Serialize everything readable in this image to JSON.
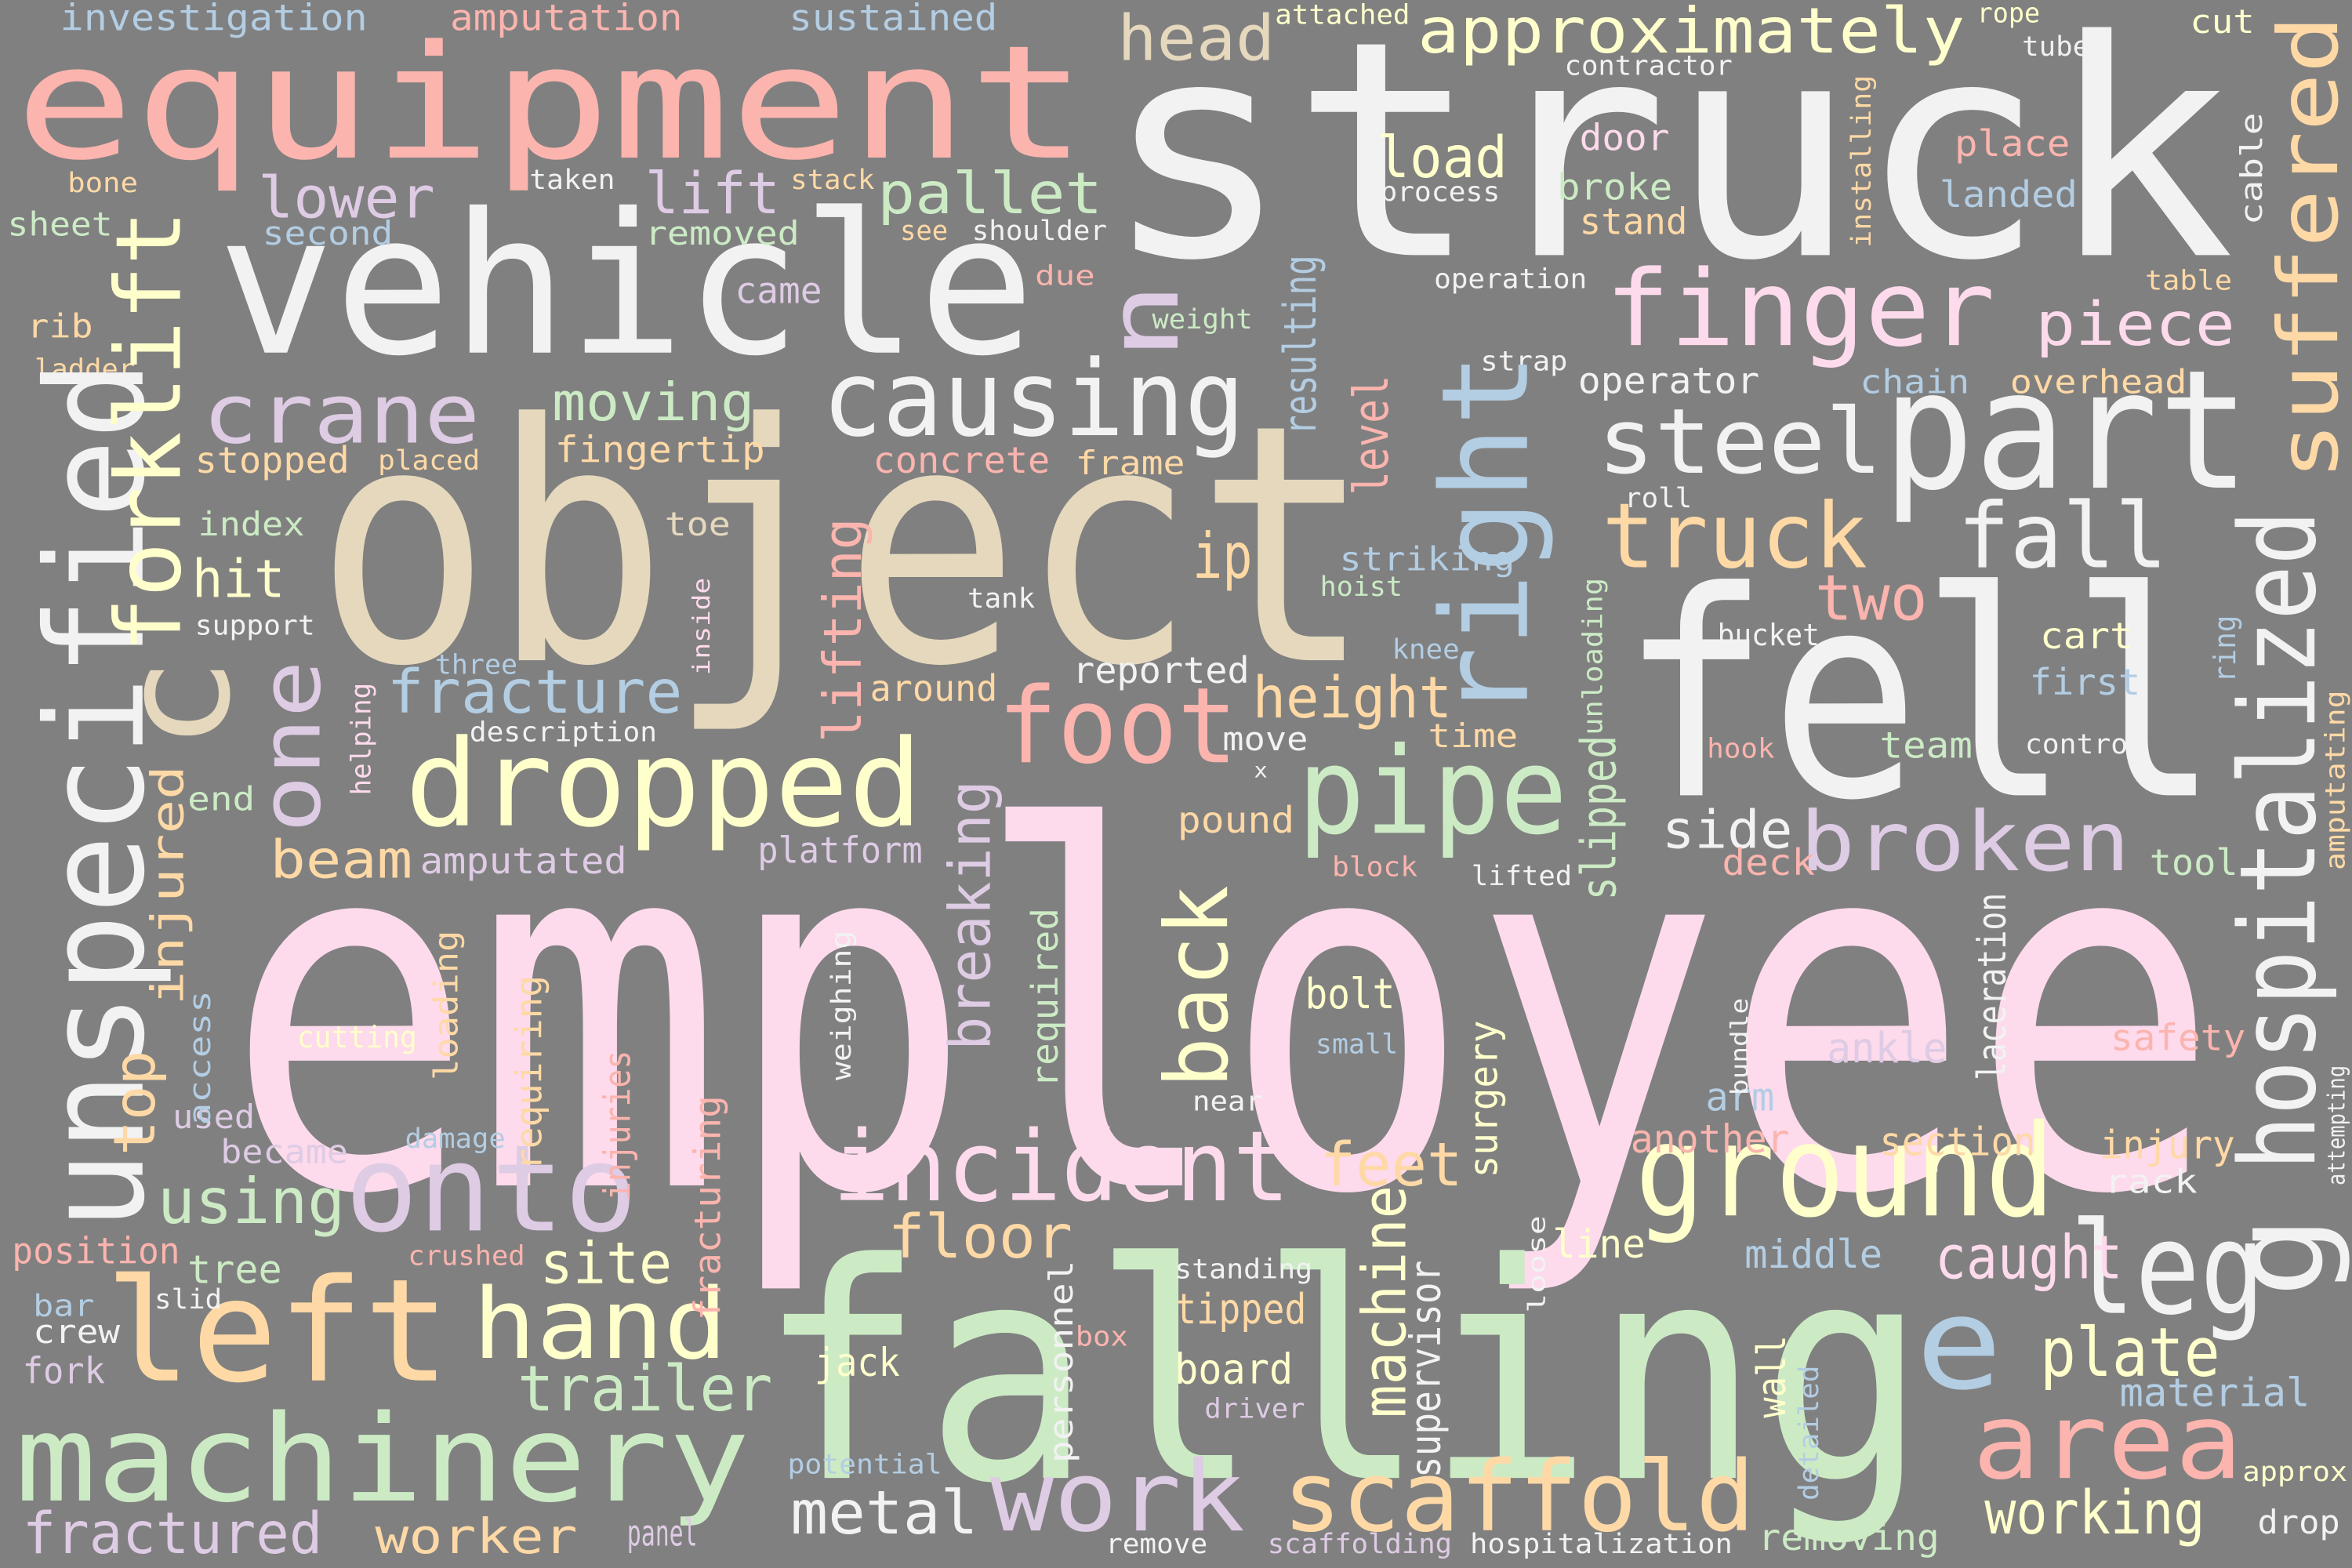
{
  "words": [
    "employee",
    "struck",
    "object",
    "falling",
    "fell",
    "vehicle",
    "equipment",
    "part",
    "machinery",
    "left",
    "onto",
    "ground",
    "dropped",
    "finger",
    "causing",
    "steel",
    "truck",
    "fall",
    "foot",
    "pipe",
    "incident",
    "hand",
    "work",
    "scaffold",
    "area",
    "leg",
    "e",
    "broken",
    "crane",
    "fracture",
    "using",
    "fractured",
    "trailer",
    "site",
    "feet",
    "floor",
    "height",
    "plate",
    "caught",
    "working",
    "metal",
    "worker",
    "approximately",
    "head",
    "lower",
    "lift",
    "pallet",
    "load",
    "piece",
    "moving",
    "two",
    "ip",
    "side",
    "beam",
    "hit",
    "bolt",
    "ankle",
    "section",
    "injury",
    "another",
    "arm",
    "line",
    "middle",
    "tipped",
    "board",
    "jack",
    "panel",
    "tree",
    "crew",
    "bar",
    "fork",
    "position",
    "slid",
    "crushed",
    "damage",
    "became",
    "used",
    "cutting",
    "amputated",
    "platform",
    "end",
    "description",
    "reported",
    "around",
    "move",
    "time",
    "pound",
    "block",
    "lifted",
    "deck",
    "tool",
    "small",
    "near",
    "safety",
    "rack",
    "material",
    "approx",
    "drop",
    "removing",
    "hospitalization",
    "scaffolding",
    "remove",
    "driver",
    "standing",
    "box",
    "potential",
    "team",
    "control",
    "hook",
    "first",
    "cart",
    "bucket",
    "knee",
    "hoist",
    "striking",
    "tank",
    "three",
    "index",
    "support",
    "toe",
    "fingertip",
    "stopped",
    "placed",
    "concrete",
    "frame",
    "operation",
    "weight",
    "strap",
    "operator",
    "chain",
    "overhead",
    "roll",
    "table",
    "door",
    "broke",
    "stand",
    "process",
    "contractor",
    "attached",
    "rope",
    "cut",
    "tube",
    "place",
    "landed",
    "investigation",
    "amputation",
    "sustained",
    "bone",
    "sheet",
    "second",
    "taken",
    "removed",
    "stack",
    "see",
    "shoulder",
    "came",
    "due",
    "rib",
    "ladder",
    "x",
    "unspecified",
    "forklift",
    "injured",
    "top",
    "access",
    "one",
    "c",
    "helping",
    "inside",
    "loading",
    "requiring",
    "injuries",
    "fracturing",
    "weighing",
    "lifting",
    "breaking",
    "required",
    "back",
    "n",
    "personnel",
    "machine",
    "supervisor",
    "surgery",
    "loose",
    "wall",
    "detailed",
    "g",
    "bundle",
    "laceration",
    "slipped",
    "unloading",
    "resulting",
    "level",
    "right",
    "installing",
    "cable",
    "suffered",
    "hospitalized",
    "amputating",
    "attempting",
    "ring"
  ]
}
